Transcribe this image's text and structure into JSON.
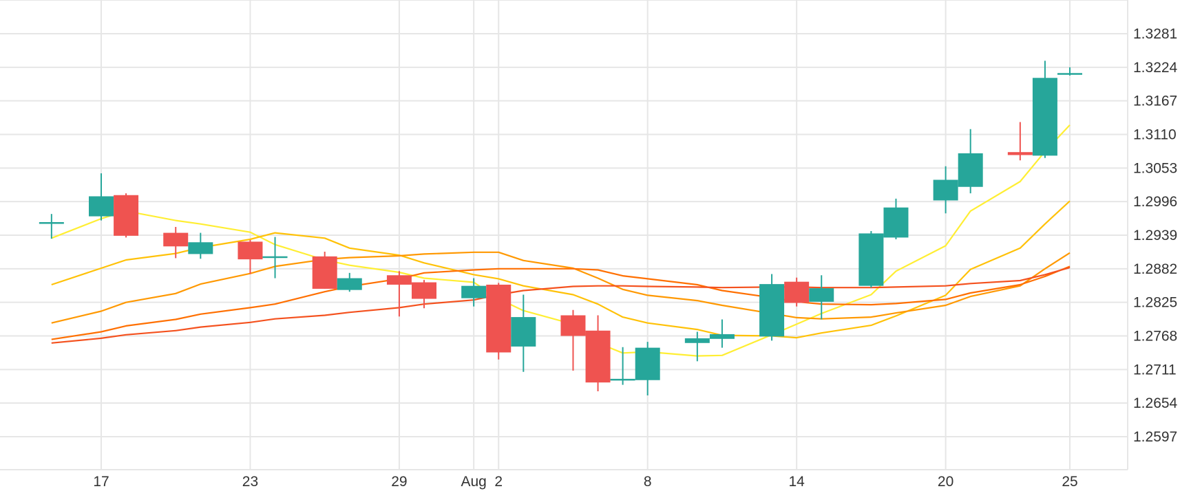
{
  "chart_data": {
    "type": "candlestick",
    "title": "",
    "xlabel": "",
    "ylabel": "",
    "x_tick_labels": [
      "17",
      "23",
      "29",
      "Aug",
      "2",
      "8",
      "14",
      "20",
      "25"
    ],
    "y_tick_labels": [
      "1.3281",
      "1.3224",
      "1.3167",
      "1.3110",
      "1.3053",
      "1.2996",
      "1.2939",
      "1.2882",
      "1.2825",
      "1.2768",
      "1.2711",
      "1.2654",
      "1.2597"
    ],
    "ylim": [
      1.254,
      1.332
    ],
    "xlim": [
      "2020-07-14",
      "2020-08-26"
    ],
    "grid": true,
    "y_axis_position": "right",
    "colors": {
      "up": "#26a69a",
      "down": "#ef5350",
      "grid": "#e6e6e6",
      "text": "#333333"
    },
    "candles": [
      {
        "date": "2020-07-15",
        "open": 1.296,
        "high": 1.2975,
        "low": 1.2933,
        "close": 1.296
      },
      {
        "date": "2020-07-17",
        "open": 1.2971,
        "high": 1.3044,
        "low": 1.2964,
        "close": 1.3005
      },
      {
        "date": "2020-07-18",
        "open": 1.3007,
        "high": 1.301,
        "low": 1.2935,
        "close": 1.2938
      },
      {
        "date": "2020-07-20",
        "open": 1.2943,
        "high": 1.2953,
        "low": 1.29,
        "close": 1.292
      },
      {
        "date": "2020-07-21",
        "open": 1.2907,
        "high": 1.2943,
        "low": 1.2899,
        "close": 1.2927
      },
      {
        "date": "2020-07-23",
        "open": 1.2928,
        "high": 1.2931,
        "low": 1.2873,
        "close": 1.2898
      },
      {
        "date": "2020-07-24",
        "open": 1.2902,
        "high": 1.2936,
        "low": 1.2866,
        "close": 1.2902
      },
      {
        "date": "2020-07-26",
        "open": 1.2903,
        "high": 1.2911,
        "low": 1.2848,
        "close": 1.2848
      },
      {
        "date": "2020-07-27",
        "open": 1.2846,
        "high": 1.2875,
        "low": 1.2843,
        "close": 1.2866
      },
      {
        "date": "2020-07-29",
        "open": 1.2871,
        "high": 1.2878,
        "low": 1.2801,
        "close": 1.2855
      },
      {
        "date": "2020-07-30",
        "open": 1.2859,
        "high": 1.2863,
        "low": 1.2815,
        "close": 1.2831
      },
      {
        "date": "2020-08-01",
        "open": 1.2832,
        "high": 1.2866,
        "low": 1.2818,
        "close": 1.2853
      },
      {
        "date": "2020-08-02",
        "open": 1.2855,
        "high": 1.2858,
        "low": 1.2728,
        "close": 1.274
      },
      {
        "date": "2020-08-03",
        "open": 1.275,
        "high": 1.2838,
        "low": 1.2707,
        "close": 1.28
      },
      {
        "date": "2020-08-05",
        "open": 1.2803,
        "high": 1.2812,
        "low": 1.2709,
        "close": 1.2768
      },
      {
        "date": "2020-08-06",
        "open": 1.2777,
        "high": 1.2803,
        "low": 1.2674,
        "close": 1.2689
      },
      {
        "date": "2020-08-07",
        "open": 1.2694,
        "high": 1.2749,
        "low": 1.2685,
        "close": 1.2694
      },
      {
        "date": "2020-08-08",
        "open": 1.2693,
        "high": 1.2758,
        "low": 1.2667,
        "close": 1.2748
      },
      {
        "date": "2020-08-10",
        "open": 1.2756,
        "high": 1.2775,
        "low": 1.2725,
        "close": 1.2764
      },
      {
        "date": "2020-08-11",
        "open": 1.2763,
        "high": 1.2796,
        "low": 1.2748,
        "close": 1.2771
      },
      {
        "date": "2020-08-13",
        "open": 1.2767,
        "high": 1.2873,
        "low": 1.276,
        "close": 1.2856
      },
      {
        "date": "2020-08-14",
        "open": 1.286,
        "high": 1.2867,
        "low": 1.2818,
        "close": 1.2824
      },
      {
        "date": "2020-08-15",
        "open": 1.2826,
        "high": 1.2871,
        "low": 1.2796,
        "close": 1.2849
      },
      {
        "date": "2020-08-17",
        "open": 1.2853,
        "high": 1.2946,
        "low": 1.285,
        "close": 1.2942
      },
      {
        "date": "2020-08-18",
        "open": 1.2935,
        "high": 1.3001,
        "low": 1.2932,
        "close": 1.2986
      },
      {
        "date": "2020-08-20",
        "open": 1.2998,
        "high": 1.3056,
        "low": 1.2976,
        "close": 1.3033
      },
      {
        "date": "2020-08-21",
        "open": 1.3021,
        "high": 1.3119,
        "low": 1.301,
        "close": 1.3078
      },
      {
        "date": "2020-08-23",
        "open": 1.308,
        "high": 1.3131,
        "low": 1.3066,
        "close": 1.3075
      },
      {
        "date": "2020-08-24",
        "open": 1.3074,
        "high": 1.3235,
        "low": 1.307,
        "close": 1.3206
      },
      {
        "date": "2020-08-25",
        "open": 1.3213,
        "high": 1.3224,
        "low": 1.321,
        "close": 1.3213
      }
    ],
    "series": [
      {
        "color": "#ffee33",
        "points": [
          [
            "2020-07-15",
            1.2934
          ],
          [
            "2020-07-17",
            1.2967
          ],
          [
            "2020-07-18",
            1.298
          ],
          [
            "2020-07-20",
            1.2964
          ],
          [
            "2020-07-21",
            1.2958
          ],
          [
            "2020-07-23",
            1.2944
          ],
          [
            "2020-07-24",
            1.2923
          ],
          [
            "2020-07-26",
            1.2897
          ],
          [
            "2020-07-27",
            1.2888
          ],
          [
            "2020-07-29",
            1.2876
          ],
          [
            "2020-07-30",
            1.2866
          ],
          [
            "2020-08-01",
            1.2859
          ],
          [
            "2020-08-02",
            1.2831
          ],
          [
            "2020-08-03",
            1.2811
          ],
          [
            "2020-08-05",
            1.2788
          ],
          [
            "2020-08-06",
            1.2756
          ],
          [
            "2020-08-07",
            1.2739
          ],
          [
            "2020-08-08",
            1.2741
          ],
          [
            "2020-08-10",
            1.2734
          ],
          [
            "2020-08-11",
            1.2735
          ],
          [
            "2020-08-13",
            1.277
          ],
          [
            "2020-08-14",
            1.2788
          ],
          [
            "2020-08-15",
            1.2806
          ],
          [
            "2020-08-17",
            1.2838
          ],
          [
            "2020-08-18",
            1.2878
          ],
          [
            "2020-08-20",
            1.2921
          ],
          [
            "2020-08-21",
            1.298
          ],
          [
            "2020-08-23",
            1.303
          ],
          [
            "2020-08-24",
            1.3081
          ],
          [
            "2020-08-25",
            1.3126
          ]
        ]
      },
      {
        "color": "#ffc107",
        "points": [
          [
            "2020-07-15",
            1.2855
          ],
          [
            "2020-07-17",
            1.2883
          ],
          [
            "2020-07-18",
            1.2897
          ],
          [
            "2020-07-20",
            1.2908
          ],
          [
            "2020-07-21",
            1.2918
          ],
          [
            "2020-07-23",
            1.2932
          ],
          [
            "2020-07-24",
            1.2943
          ],
          [
            "2020-07-26",
            1.2934
          ],
          [
            "2020-07-27",
            1.2917
          ],
          [
            "2020-07-29",
            1.2905
          ],
          [
            "2020-07-30",
            1.2892
          ],
          [
            "2020-08-01",
            1.2872
          ],
          [
            "2020-08-02",
            1.2865
          ],
          [
            "2020-08-03",
            1.2853
          ],
          [
            "2020-08-05",
            1.2838
          ],
          [
            "2020-08-06",
            1.2822
          ],
          [
            "2020-08-07",
            1.28
          ],
          [
            "2020-08-08",
            1.279
          ],
          [
            "2020-08-10",
            1.2779
          ],
          [
            "2020-08-11",
            1.2769
          ],
          [
            "2020-08-13",
            1.2768
          ],
          [
            "2020-08-14",
            1.2765
          ],
          [
            "2020-08-15",
            1.2773
          ],
          [
            "2020-08-17",
            1.2786
          ],
          [
            "2020-08-18",
            1.2802
          ],
          [
            "2020-08-20",
            1.2837
          ],
          [
            "2020-08-21",
            1.2881
          ],
          [
            "2020-08-23",
            1.2917
          ],
          [
            "2020-08-24",
            1.2958
          ],
          [
            "2020-08-25",
            1.2997
          ]
        ]
      },
      {
        "color": "#ff9800",
        "points": [
          [
            "2020-07-15",
            1.279
          ],
          [
            "2020-07-17",
            1.281
          ],
          [
            "2020-07-18",
            1.2825
          ],
          [
            "2020-07-20",
            1.284
          ],
          [
            "2020-07-21",
            1.2856
          ],
          [
            "2020-07-23",
            1.2874
          ],
          [
            "2020-07-24",
            1.2886
          ],
          [
            "2020-07-26",
            1.2898
          ],
          [
            "2020-07-27",
            1.2901
          ],
          [
            "2020-07-29",
            1.2904
          ],
          [
            "2020-07-30",
            1.2907
          ],
          [
            "2020-08-01",
            1.291
          ],
          [
            "2020-08-02",
            1.291
          ],
          [
            "2020-08-03",
            1.2896
          ],
          [
            "2020-08-05",
            1.2883
          ],
          [
            "2020-08-06",
            1.2866
          ],
          [
            "2020-08-07",
            1.2847
          ],
          [
            "2020-08-08",
            1.2837
          ],
          [
            "2020-08-10",
            1.2828
          ],
          [
            "2020-08-11",
            1.282
          ],
          [
            "2020-08-13",
            1.2806
          ],
          [
            "2020-08-14",
            1.2799
          ],
          [
            "2020-08-15",
            1.2797
          ],
          [
            "2020-08-17",
            1.28
          ],
          [
            "2020-08-18",
            1.2807
          ],
          [
            "2020-08-20",
            1.282
          ],
          [
            "2020-08-21",
            1.2835
          ],
          [
            "2020-08-23",
            1.2853
          ],
          [
            "2020-08-24",
            1.2882
          ],
          [
            "2020-08-25",
            1.2909
          ]
        ]
      },
      {
        "color": "#ff6f00",
        "points": [
          [
            "2020-07-15",
            1.2762
          ],
          [
            "2020-07-17",
            1.2775
          ],
          [
            "2020-07-18",
            1.2785
          ],
          [
            "2020-07-20",
            1.2796
          ],
          [
            "2020-07-21",
            1.2805
          ],
          [
            "2020-07-23",
            1.2816
          ],
          [
            "2020-07-24",
            1.2822
          ],
          [
            "2020-07-26",
            1.2843
          ],
          [
            "2020-07-27",
            1.2852
          ],
          [
            "2020-07-29",
            1.2865
          ],
          [
            "2020-07-30",
            1.2875
          ],
          [
            "2020-08-01",
            1.288
          ],
          [
            "2020-08-02",
            1.2882
          ],
          [
            "2020-08-03",
            1.2882
          ],
          [
            "2020-08-05",
            1.2882
          ],
          [
            "2020-08-06",
            1.288
          ],
          [
            "2020-08-07",
            1.287
          ],
          [
            "2020-08-08",
            1.2865
          ],
          [
            "2020-08-10",
            1.2855
          ],
          [
            "2020-08-11",
            1.2845
          ],
          [
            "2020-08-13",
            1.2833
          ],
          [
            "2020-08-14",
            1.2826
          ],
          [
            "2020-08-15",
            1.2822
          ],
          [
            "2020-08-17",
            1.2821
          ],
          [
            "2020-08-18",
            1.2823
          ],
          [
            "2020-08-20",
            1.283
          ],
          [
            "2020-08-21",
            1.2841
          ],
          [
            "2020-08-23",
            1.2855
          ],
          [
            "2020-08-24",
            1.2869
          ],
          [
            "2020-08-25",
            1.2886
          ]
        ]
      },
      {
        "color": "#f4511e",
        "points": [
          [
            "2020-07-15",
            1.2756
          ],
          [
            "2020-07-17",
            1.2764
          ],
          [
            "2020-07-18",
            1.277
          ],
          [
            "2020-07-20",
            1.2777
          ],
          [
            "2020-07-21",
            1.2783
          ],
          [
            "2020-07-23",
            1.2791
          ],
          [
            "2020-07-24",
            1.2797
          ],
          [
            "2020-07-26",
            1.2803
          ],
          [
            "2020-07-27",
            1.2808
          ],
          [
            "2020-07-29",
            1.2816
          ],
          [
            "2020-07-30",
            1.2822
          ],
          [
            "2020-08-01",
            1.2829
          ],
          [
            "2020-08-02",
            1.2838
          ],
          [
            "2020-08-03",
            1.2845
          ],
          [
            "2020-08-05",
            1.2852
          ],
          [
            "2020-08-06",
            1.2853
          ],
          [
            "2020-08-07",
            1.2853
          ],
          [
            "2020-08-08",
            1.2852
          ],
          [
            "2020-08-10",
            1.2851
          ],
          [
            "2020-08-11",
            1.285
          ],
          [
            "2020-08-13",
            1.2851
          ],
          [
            "2020-08-14",
            1.2851
          ],
          [
            "2020-08-15",
            1.285
          ],
          [
            "2020-08-17",
            1.285
          ],
          [
            "2020-08-18",
            1.2851
          ],
          [
            "2020-08-20",
            1.2853
          ],
          [
            "2020-08-21",
            1.2857
          ],
          [
            "2020-08-23",
            1.2862
          ],
          [
            "2020-08-24",
            1.2872
          ],
          [
            "2020-08-25",
            1.2884
          ]
        ]
      }
    ]
  }
}
